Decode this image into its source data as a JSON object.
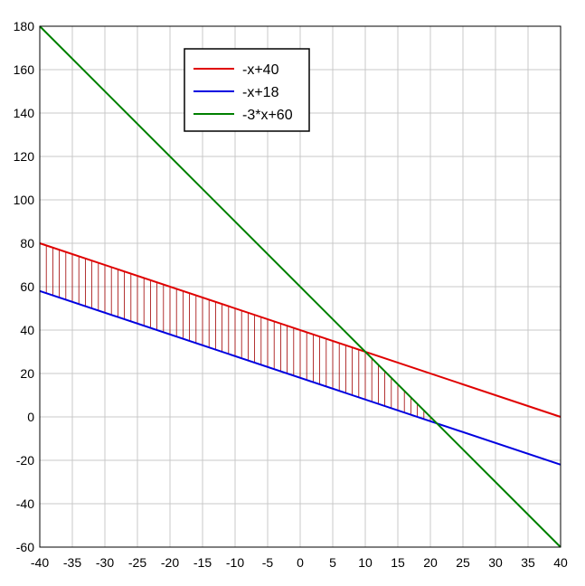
{
  "chart_data": {
    "type": "line",
    "title": "",
    "xlabel": "",
    "ylabel": "",
    "xlim": [
      -40,
      40
    ],
    "ylim": [
      -60,
      180
    ],
    "xticks": [
      -40,
      -35,
      -30,
      -25,
      -20,
      -15,
      -10,
      -5,
      0,
      5,
      10,
      15,
      20,
      25,
      30,
      35,
      40
    ],
    "yticks": [
      -60,
      -40,
      -20,
      0,
      20,
      40,
      60,
      80,
      100,
      120,
      140,
      160,
      180
    ],
    "grid": true,
    "legend_position": "top-left",
    "series": [
      {
        "name": "-x+40",
        "color": "#e00000",
        "x": [
          -40,
          40
        ],
        "y": [
          80,
          0
        ]
      },
      {
        "name": "-x+18",
        "color": "#0000e0",
        "x": [
          -40,
          40
        ],
        "y": [
          58,
          -22
        ]
      },
      {
        "name": "-3*x+60",
        "color": "#008000",
        "x": [
          -40,
          40
        ],
        "y": [
          180,
          -60
        ]
      }
    ],
    "shaded_region": {
      "description_from_series": [
        "-x+40",
        "-x+18",
        "-3*x+60"
      ],
      "color": "#a00000",
      "x_range": [
        -40,
        21
      ]
    }
  }
}
